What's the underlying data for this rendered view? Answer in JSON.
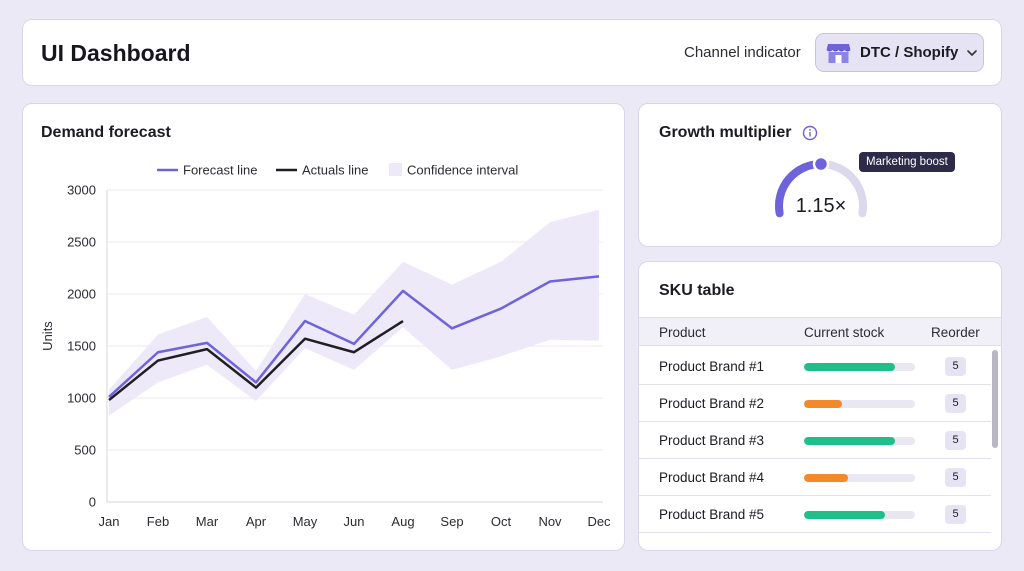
{
  "header": {
    "title": "UI Dashboard",
    "channel_label": "Channel indicator",
    "channel_value": "DTC / Shopify",
    "store_icon": "store-icon",
    "chevron_icon": "chevron-down-icon"
  },
  "forecast": {
    "title": "Demand forecast",
    "chart_data": {
      "type": "line",
      "categories": [
        "Jan",
        "Feb",
        "Mar",
        "Apr",
        "May",
        "Jun",
        "Aug",
        "Sep",
        "Oct",
        "Nov",
        "Dec"
      ],
      "ylabel": "Units",
      "ylim": [
        0,
        3000
      ],
      "yticks": [
        0,
        500,
        1000,
        1500,
        2000,
        2500,
        3000
      ],
      "grid": true,
      "legend_position": "top",
      "series": [
        {
          "name": "Forecast line",
          "color": "#6E63DB",
          "values": [
            1010,
            1440,
            1530,
            1150,
            1740,
            1520,
            2030,
            1670,
            1860,
            2120,
            2170
          ]
        },
        {
          "name": "Actuals line",
          "color": "#1E1E24",
          "values": [
            980,
            1360,
            1470,
            1100,
            1570,
            1440,
            1740,
            null,
            null,
            null,
            null
          ]
        },
        {
          "name": "Confidence interval",
          "color": "#EEE9F8",
          "lower": [
            830,
            1150,
            1320,
            970,
            1480,
            1270,
            1680,
            1270,
            1400,
            1560,
            1550
          ],
          "upper": [
            1080,
            1610,
            1780,
            1260,
            2000,
            1800,
            2310,
            2090,
            2310,
            2690,
            2810
          ]
        }
      ]
    }
  },
  "growth": {
    "title": "Growth multiplier",
    "info_icon": "info-icon",
    "value_label": "1.15×",
    "tooltip": "Marketing boost",
    "gauge_fraction": 0.5,
    "accent": "#6E63DB"
  },
  "sku": {
    "title": "SKU table",
    "columns": [
      "Product",
      "Current stock",
      "Reorder"
    ],
    "rows": [
      {
        "name": "Product Brand #1",
        "stock": 0.82,
        "status": "ok",
        "reorder": "5"
      },
      {
        "name": "Product Brand #2",
        "stock": 0.34,
        "status": "low",
        "reorder": "5"
      },
      {
        "name": "Product Brand #3",
        "stock": 0.82,
        "status": "ok",
        "reorder": "5"
      },
      {
        "name": "Product Brand #4",
        "stock": 0.4,
        "status": "low",
        "reorder": "5"
      },
      {
        "name": "Product Brand #5",
        "stock": 0.73,
        "status": "ok",
        "reorder": "5"
      }
    ],
    "colors": {
      "ok": "#1EC08A",
      "low": "#F28A2B"
    }
  }
}
